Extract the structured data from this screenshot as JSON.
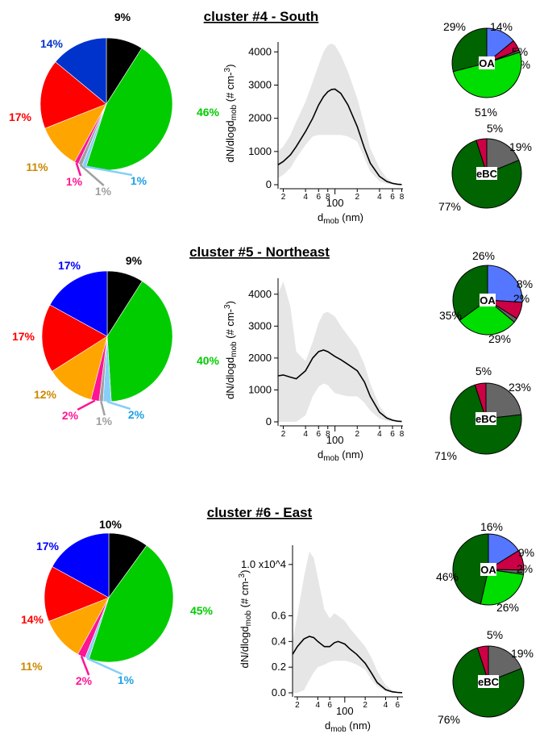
{
  "colors": {
    "black": "#000000",
    "blue_cl4": "#0033cc",
    "blue": "#0000ff",
    "red": "#ff0000",
    "orange": "#ffa500",
    "magenta": "#ff1493",
    "grey": "#a0a0a0",
    "lightblue": "#87cefa",
    "green": "#00cc00",
    "label_orange": "#cc8800",
    "label_lightblue": "#1ea0e6",
    "oa_green": "#006400",
    "oa_lightgreen": "#00dd00",
    "oa_blue": "#5577ff",
    "oa_crimson": "#cc0044",
    "oa_grey": "#666666",
    "band": "#e6e6e6"
  },
  "chart_data": [
    {
      "type": "pie",
      "title": "cluster #4 - South",
      "slices": [
        {
          "value": 9,
          "label": "9%",
          "color": "black"
        },
        {
          "value": 46,
          "label": "46%",
          "color": "green"
        },
        {
          "value": 1,
          "label": "1%",
          "color": "lightblue",
          "label_color": "label_lightblue"
        },
        {
          "value": 1,
          "label": "1%",
          "color": "grey"
        },
        {
          "value": 1,
          "label": "1%",
          "color": "magenta"
        },
        {
          "value": 11,
          "label": "11%",
          "color": "orange",
          "label_color": "label_orange"
        },
        {
          "value": 17,
          "label": "17%",
          "color": "red"
        },
        {
          "value": 14,
          "label": "14%",
          "color": "blue_cl4"
        }
      ]
    },
    {
      "type": "line",
      "xlabel": "dmob (nm)",
      "ylabel": "dN/dlogdmob (# cm-3)",
      "x_scale": "log",
      "xlim": [
        17,
        830
      ],
      "ylim": [
        0,
        4300
      ],
      "y_ticks": [
        0,
        1000,
        2000,
        3000,
        4000
      ],
      "y_tick_labels": [
        "0",
        "1000",
        "2000",
        "3000",
        "4000"
      ],
      "x_major_ticks": [
        {
          "value": 100,
          "label": "100"
        }
      ],
      "x_minor_ticks": [
        {
          "value": 20,
          "label": "2"
        },
        {
          "value": 40,
          "label": "4"
        },
        {
          "value": 60,
          "label": "6"
        },
        {
          "value": 80,
          "label": "8"
        },
        {
          "value": 200,
          "label": "2"
        },
        {
          "value": 400,
          "label": "4"
        },
        {
          "value": 600,
          "label": "6"
        },
        {
          "value": 800,
          "label": "8"
        }
      ],
      "series": [
        {
          "x": [
            17,
            20,
            25,
            30,
            40,
            50,
            60,
            70,
            80,
            90,
            100,
            120,
            150,
            200,
            250,
            300,
            400,
            500,
            600,
            700,
            800
          ],
          "y": [
            600,
            700,
            900,
            1150,
            1600,
            2000,
            2400,
            2650,
            2800,
            2870,
            2880,
            2750,
            2400,
            1750,
            1100,
            650,
            250,
            100,
            40,
            15,
            5
          ]
        }
      ],
      "band": {
        "x": [
          17,
          20,
          25,
          30,
          40,
          50,
          60,
          70,
          80,
          90,
          100,
          120,
          150,
          200,
          250,
          300,
          400,
          500,
          600,
          700,
          800
        ],
        "upper": [
          1000,
          1150,
          1500,
          1900,
          2500,
          3100,
          3600,
          4000,
          4200,
          4250,
          4200,
          3900,
          3400,
          2600,
          1800,
          1100,
          500,
          200,
          80,
          30,
          10
        ],
        "lower": [
          200,
          300,
          500,
          800,
          1200,
          1450,
          1500,
          1500,
          1500,
          1500,
          1500,
          1500,
          1450,
          1300,
          800,
          400,
          100,
          30,
          10,
          5,
          0
        ]
      }
    },
    {
      "type": "pie",
      "center_label": "OA",
      "slices": [
        {
          "value": 14,
          "label": "14%",
          "color": "oa_blue"
        },
        {
          "value": 5,
          "label": "5%",
          "color": "oa_crimson"
        },
        {
          "value": 1,
          "label": "1%",
          "color": "oa_grey"
        },
        {
          "value": 51,
          "label": "51%",
          "color": "oa_lightgreen"
        },
        {
          "value": 29,
          "label": "29%",
          "color": "oa_green"
        }
      ]
    },
    {
      "type": "pie",
      "center_label": "eBC",
      "slices": [
        {
          "value": 19,
          "label": "19%",
          "color": "oa_grey"
        },
        {
          "value": 77,
          "label": "77%",
          "color": "oa_green"
        },
        {
          "value": 5,
          "label": "5%",
          "color": "oa_crimson"
        }
      ]
    },
    {
      "type": "pie",
      "title": "cluster #5 - Northeast",
      "slices": [
        {
          "value": 9,
          "label": "9%",
          "color": "black"
        },
        {
          "value": 40,
          "label": "40%",
          "color": "green"
        },
        {
          "value": 2,
          "label": "2%",
          "color": "lightblue",
          "label_color": "label_lightblue"
        },
        {
          "value": 1,
          "label": "1%",
          "color": "grey"
        },
        {
          "value": 2,
          "label": "2%",
          "color": "magenta"
        },
        {
          "value": 12,
          "label": "12%",
          "color": "orange",
          "label_color": "label_orange"
        },
        {
          "value": 17,
          "label": "17%",
          "color": "red"
        },
        {
          "value": 17,
          "label": "17%",
          "color": "blue"
        }
      ]
    },
    {
      "type": "line",
      "xlabel": "dmob (nm)",
      "ylabel": "dN/dlogdmob (# cm-3)",
      "x_scale": "log",
      "xlim": [
        17,
        830
      ],
      "ylim": [
        0,
        4500
      ],
      "y_ticks": [
        0,
        1000,
        2000,
        3000,
        4000
      ],
      "y_tick_labels": [
        "0",
        "1000",
        "2000",
        "3000",
        "4000"
      ],
      "x_major_ticks": [
        {
          "value": 100,
          "label": "100"
        }
      ],
      "x_minor_ticks": [
        {
          "value": 20,
          "label": "2"
        },
        {
          "value": 40,
          "label": "4"
        },
        {
          "value": 60,
          "label": "6"
        },
        {
          "value": 80,
          "label": "8"
        },
        {
          "value": 200,
          "label": "2"
        },
        {
          "value": 400,
          "label": "4"
        },
        {
          "value": 600,
          "label": "6"
        },
        {
          "value": 800,
          "label": "8"
        }
      ],
      "series": [
        {
          "x": [
            17,
            20,
            25,
            30,
            40,
            50,
            60,
            70,
            80,
            100,
            120,
            150,
            200,
            250,
            300,
            400,
            500,
            600,
            700,
            800
          ],
          "y": [
            1440,
            1470,
            1400,
            1350,
            1600,
            2000,
            2200,
            2250,
            2200,
            2050,
            1950,
            1800,
            1600,
            1250,
            800,
            300,
            120,
            50,
            20,
            10
          ]
        }
      ],
      "band": {
        "x": [
          17,
          20,
          25,
          30,
          40,
          50,
          60,
          70,
          80,
          100,
          120,
          150,
          200,
          250,
          300,
          400,
          500,
          600,
          700,
          800
        ],
        "upper": [
          4000,
          4400,
          3600,
          2200,
          1900,
          2500,
          3100,
          3400,
          3450,
          3300,
          3000,
          2700,
          2300,
          1800,
          1200,
          500,
          200,
          80,
          30,
          10
        ],
        "lower": [
          0,
          0,
          0,
          0,
          200,
          800,
          1100,
          1200,
          1150,
          900,
          850,
          800,
          800,
          600,
          350,
          100,
          30,
          10,
          5,
          0
        ]
      }
    },
    {
      "type": "pie",
      "center_label": "OA",
      "slices": [
        {
          "value": 26,
          "label": "26%",
          "color": "oa_blue"
        },
        {
          "value": 8,
          "label": "8%",
          "color": "oa_crimson"
        },
        {
          "value": 2,
          "label": "2%",
          "color": "oa_grey"
        },
        {
          "value": 29,
          "label": "29%",
          "color": "oa_lightgreen"
        },
        {
          "value": 35,
          "label": "35%",
          "color": "oa_green"
        }
      ]
    },
    {
      "type": "pie",
      "center_label": "eBC",
      "slices": [
        {
          "value": 23,
          "label": "23%",
          "color": "oa_grey"
        },
        {
          "value": 71,
          "label": "71%",
          "color": "oa_green"
        },
        {
          "value": 5,
          "label": "5%",
          "color": "oa_crimson"
        }
      ]
    },
    {
      "type": "pie",
      "title": "cluster #6 - East",
      "slices": [
        {
          "value": 10,
          "label": "10%",
          "color": "black"
        },
        {
          "value": 45,
          "label": "45%",
          "color": "green"
        },
        {
          "value": 1,
          "label": "1%",
          "color": "lightblue",
          "label_color": "label_lightblue"
        },
        {
          "value": 0,
          "label": "",
          "color": "grey"
        },
        {
          "value": 2,
          "label": "2%",
          "color": "magenta"
        },
        {
          "value": 11,
          "label": "11%",
          "color": "orange",
          "label_color": "label_orange"
        },
        {
          "value": 14,
          "label": "14%",
          "color": "red"
        },
        {
          "value": 17,
          "label": "17%",
          "color": "blue"
        }
      ]
    },
    {
      "type": "line",
      "xlabel": "dmob (nm)",
      "ylabel": "dN/dlogdmob (# cm-3)",
      "x_scale": "log",
      "xlim": [
        17,
        720
      ],
      "ylim": [
        0,
        11500
      ],
      "y_ticks": [
        0,
        2000,
        4000,
        6000,
        10000
      ],
      "y_tick_labels": [
        "0.0",
        "0.2",
        "0.4",
        "0.6",
        "1.0 x10^4"
      ],
      "x_major_ticks": [
        {
          "value": 100,
          "label": "100"
        }
      ],
      "x_minor_ticks": [
        {
          "value": 20,
          "label": "2"
        },
        {
          "value": 40,
          "label": "4"
        },
        {
          "value": 60,
          "label": "6"
        },
        {
          "value": 200,
          "label": "2"
        },
        {
          "value": 400,
          "label": "4"
        },
        {
          "value": 600,
          "label": "6"
        }
      ],
      "series": [
        {
          "x": [
            17,
            20,
            25,
            30,
            35,
            40,
            50,
            60,
            70,
            80,
            100,
            120,
            150,
            200,
            250,
            300,
            400,
            500,
            600,
            700
          ],
          "y": [
            3000,
            3600,
            4200,
            4400,
            4300,
            4000,
            3600,
            3600,
            3900,
            4000,
            3800,
            3400,
            3000,
            2300,
            1500,
            800,
            250,
            80,
            30,
            10
          ]
        }
      ],
      "band": {
        "x": [
          17,
          20,
          25,
          30,
          35,
          40,
          50,
          60,
          70,
          80,
          100,
          120,
          150,
          200,
          250,
          300,
          400,
          500,
          600,
          700
        ],
        "upper": [
          4000,
          6000,
          9000,
          11000,
          10500,
          9000,
          6500,
          5800,
          6200,
          6000,
          5600,
          5000,
          4400,
          3600,
          2700,
          1700,
          600,
          200,
          60,
          20
        ],
        "lower": [
          0,
          0,
          200,
          1000,
          1600,
          2000,
          2200,
          2400,
          2500,
          2500,
          2500,
          2400,
          2200,
          1800,
          1000,
          500,
          100,
          30,
          10,
          0
        ]
      }
    },
    {
      "type": "pie",
      "center_label": "OA",
      "slices": [
        {
          "value": 16,
          "label": "16%",
          "color": "oa_blue"
        },
        {
          "value": 9,
          "label": "9%",
          "color": "oa_crimson"
        },
        {
          "value": 2,
          "label": "2%",
          "color": "oa_grey"
        },
        {
          "value": 26,
          "label": "26%",
          "color": "oa_lightgreen"
        },
        {
          "value": 46,
          "label": "46%",
          "color": "oa_green"
        }
      ]
    },
    {
      "type": "pie",
      "center_label": "eBC",
      "slices": [
        {
          "value": 19,
          "label": "19%",
          "color": "oa_grey"
        },
        {
          "value": 76,
          "label": "76%",
          "color": "oa_green"
        },
        {
          "value": 5,
          "label": "5%",
          "color": "oa_crimson"
        }
      ]
    }
  ]
}
